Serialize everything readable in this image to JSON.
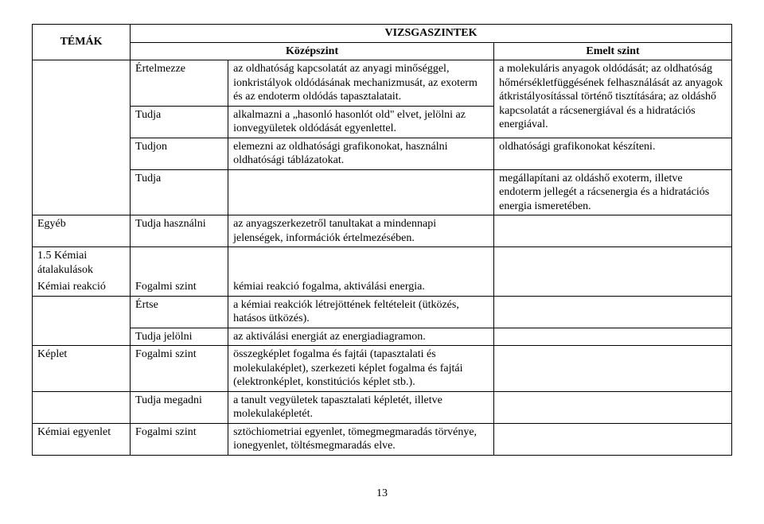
{
  "header": {
    "temak": "TÉMÁK",
    "vizsgaszintek": "VIZSGASZINTEK",
    "kozepszint": "Középszint",
    "emelt": "Emelt szint"
  },
  "rows": {
    "r1": {
      "c2": "Értelmezze",
      "c3": "az oldhatóság kapcsolatát az anyagi minőséggel, ionkristályok oldódásának mechanizmusát, az exoterm és az endoterm oldódás tapasztalatait.",
      "c4": "a molekuláris anyagok oldódását; az oldhatóság hőmérsékletfüggésének felhasználását az anyagok átkristályosítással történő tisztítására; az oldáshő kapcsolatát a rácsenergiával és a hidratációs energiával."
    },
    "r2": {
      "c2": "Tudja",
      "c3": "alkalmazni a „hasonló hasonlót old\" elvet, jelölni az ionvegyületek oldódását egyenlettel."
    },
    "r3": {
      "c2": "Tudjon",
      "c3": "elemezni az oldhatósági grafikonokat, használni oldhatósági táblázatokat.",
      "c4": "oldhatósági grafikonokat készíteni."
    },
    "r4": {
      "c2": "Tudja",
      "c4": "megállapítani az oldáshő exoterm, illetve endoterm jellegét a rácsenergia és a hidratációs energia ismeretében."
    },
    "r5": {
      "c1": "Egyéb",
      "c2": "Tudja használni",
      "c3": "az anyagszerkezetről tanultakat a mindennapi jelenségek, információk értelmezésében."
    },
    "r6": {
      "c1": "1.5 Kémiai átalakulások"
    },
    "r7": {
      "c1": "Kémiai reakció",
      "c2": "Fogalmi szint",
      "c3": "kémiai reakció fogalma, aktiválási energia."
    },
    "r8": {
      "c2": "Értse",
      "c3": "a kémiai reakciók létrejöttének feltételeit (ütközés, hatásos ütközés)."
    },
    "r9": {
      "c2": "Tudja jelölni",
      "c3": "az aktiválási energiát az energiadiagramon."
    },
    "r10": {
      "c1": "Képlet",
      "c2": "Fogalmi szint",
      "c3": "összegképlet fogalma és fajtái (tapasztalati és molekulaképlet), szerkezeti képlet fogalma és fajtái (elektronképlet, konstitúciós képlet stb.)."
    },
    "r11": {
      "c2": "Tudja megadni",
      "c3": "a tanult vegyületek tapasztalati képletét, illetve molekulaképletét."
    },
    "r12": {
      "c1": "Kémiai egyenlet",
      "c2": "Fogalmi szint",
      "c3": "sztöchiometriai egyenlet, tömegmegmaradás törvénye, ionegyenlet, töltésmegmaradás elve."
    }
  },
  "page_number": "13"
}
